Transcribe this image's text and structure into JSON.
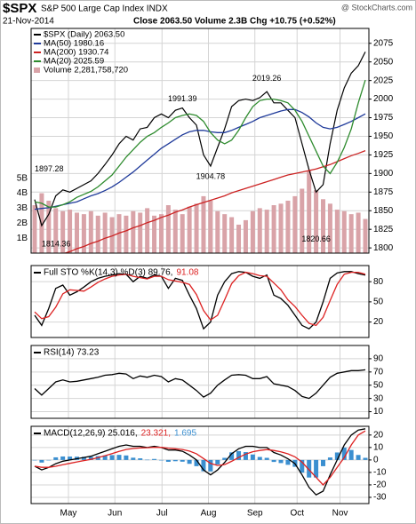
{
  "header": {
    "symbol": "$SPX",
    "name": "S&P 500 Large Cap Index INDX",
    "source": "@ StockCharts.com",
    "date": "21-Nov-2014",
    "quote": "Close 2063.50  Volume 2.3B  Chg +10.75 (+0.52%)"
  },
  "chart_data": [
    {
      "type": "price",
      "legend": "top-left",
      "ylim": [
        1793,
        2095
      ],
      "yticks": [
        1800,
        1825,
        1850,
        1875,
        1900,
        1925,
        1950,
        1975,
        2000,
        2025,
        2050,
        2075
      ],
      "y2lim": [
        0,
        15
      ],
      "y2ticks": [
        {
          "value": 1,
          "label": "1B"
        },
        {
          "value": 2,
          "label": "2B"
        },
        {
          "value": 3,
          "label": "3B"
        },
        {
          "value": 4,
          "label": "4B"
        },
        {
          "value": 5,
          "label": "5B"
        }
      ],
      "series": [
        {
          "name": "$SPX (Daily) 2063.50",
          "color": "#000000",
          "values": [
            1865,
            1830,
            1845,
            1870,
            1878,
            1875,
            1880,
            1885,
            1890,
            1900,
            1912,
            1925,
            1940,
            1950,
            1945,
            1960,
            1962,
            1975,
            1980,
            1975,
            1985,
            1988,
            1975,
            1965,
            1925,
            1910,
            1935,
            1960,
            1990,
            1998,
            2000,
            1998,
            2002,
            2010,
            1995,
            1995,
            1985,
            1975,
            1940,
            1905,
            1875,
            1885,
            1940,
            1985,
            2015,
            2035,
            2045,
            2063.5
          ]
        },
        {
          "name": "MA(50) 1980.16",
          "color": "#1f3a9a",
          "values": [
            1852,
            1853,
            1854,
            1856,
            1858,
            1860,
            1862,
            1866,
            1870,
            1873,
            1877,
            1882,
            1888,
            1895,
            1902,
            1910,
            1918,
            1926,
            1934,
            1940,
            1946,
            1952,
            1956,
            1958,
            1958,
            1956,
            1955,
            1955,
            1958,
            1962,
            1966,
            1970,
            1975,
            1978,
            1981,
            1984,
            1986,
            1986,
            1982,
            1976,
            1968,
            1962,
            1960,
            1962,
            1966,
            1970,
            1975,
            1980.16
          ]
        },
        {
          "name": "MA(200) 1930.74",
          "color": "#cc2222",
          "values": [
            1778,
            1781,
            1785,
            1788,
            1792,
            1795,
            1799,
            1802,
            1806,
            1809,
            1813,
            1816,
            1820,
            1823,
            1827,
            1830,
            1834,
            1837,
            1841,
            1844,
            1848,
            1851,
            1855,
            1858,
            1861,
            1864,
            1867,
            1870,
            1874,
            1877,
            1880,
            1883,
            1886,
            1889,
            1892,
            1895,
            1898,
            1900,
            1902,
            1904,
            1906,
            1909,
            1912,
            1916,
            1920,
            1924,
            1927,
            1930.74
          ]
        },
        {
          "name": "MA(20) 2025.59",
          "color": "#2e8b2e",
          "values": [
            1862,
            1860,
            1855,
            1855,
            1858,
            1862,
            1868,
            1872,
            1876,
            1882,
            1890,
            1898,
            1910,
            1922,
            1932,
            1942,
            1950,
            1955,
            1962,
            1968,
            1975,
            1978,
            1980,
            1978,
            1970,
            1955,
            1945,
            1940,
            1945,
            1958,
            1975,
            1990,
            1998,
            2000,
            2000,
            1998,
            1995,
            1985,
            1970,
            1950,
            1930,
            1910,
            1900,
            1915,
            1935,
            1960,
            1995,
            2025.59
          ]
        },
        {
          "name": "Volume 2,281,758,720",
          "color": "#d9a3a8",
          "type": "bar",
          "axis": "y2",
          "values": [
            3.2,
            4.0,
            3.5,
            3.0,
            2.8,
            2.9,
            2.7,
            2.6,
            2.8,
            2.5,
            2.7,
            2.4,
            2.6,
            2.5,
            2.8,
            2.7,
            3.0,
            2.5,
            2.6,
            3.2,
            2.9,
            2.6,
            3.1,
            3.3,
            3.8,
            3.5,
            2.8,
            2.6,
            2.4,
            1.9,
            2.2,
            2.8,
            3.0,
            2.9,
            3.2,
            3.3,
            3.5,
            3.8,
            4.3,
            5.5,
            4.2,
            3.6,
            3.3,
            2.9,
            2.8,
            2.6,
            2.7,
            2.28
          ]
        }
      ],
      "annotations": [
        {
          "label": "1897.28",
          "x": 0,
          "y": 1897.28
        },
        {
          "label": "1814.36",
          "x": 1,
          "y": 1814.36
        },
        {
          "label": "1991.39",
          "x": 21,
          "y": 1991.39
        },
        {
          "label": "1904.78",
          "x": 25,
          "y": 1904.78
        },
        {
          "label": "2019.26",
          "x": 33,
          "y": 2019.26
        },
        {
          "label": "1820.66",
          "x": 40,
          "y": 1820.66
        }
      ]
    },
    {
      "type": "line",
      "ylim": [
        -3,
        104
      ],
      "yticks": [
        20,
        50,
        80
      ],
      "series": [
        {
          "name": "Full STO %K(14,3) %D(3) 89.76,",
          "color": "#000000",
          "values": [
            30,
            15,
            40,
            70,
            75,
            60,
            65,
            72,
            80,
            85,
            88,
            90,
            92,
            91,
            80,
            88,
            85,
            90,
            88,
            70,
            85,
            82,
            60,
            40,
            10,
            20,
            60,
            80,
            92,
            95,
            94,
            88,
            85,
            90,
            60,
            55,
            45,
            30,
            15,
            10,
            20,
            50,
            85,
            93,
            95,
            95,
            92,
            89.76
          ]
        },
        {
          "name": "91.08",
          "color": "#dd2222",
          "values": [
            35,
            25,
            28,
            42,
            62,
            68,
            67,
            66,
            72,
            79,
            84,
            88,
            90,
            91,
            88,
            86,
            84,
            88,
            88,
            83,
            81,
            79,
            76,
            61,
            37,
            23,
            30,
            53,
            77,
            89,
            94,
            92,
            89,
            88,
            78,
            68,
            53,
            43,
            30,
            18,
            15,
            27,
            52,
            76,
            91,
            94,
            94,
            91.08
          ]
        }
      ]
    },
    {
      "type": "line",
      "ylim": [
        0,
        110
      ],
      "yticks": [
        10,
        30,
        50,
        70,
        90
      ],
      "series": [
        {
          "name": "RSI(14) 73.23",
          "color": "#000000",
          "values": [
            45,
            35,
            45,
            55,
            58,
            55,
            56,
            58,
            60,
            62,
            65,
            66,
            68,
            67,
            60,
            64,
            62,
            65,
            63,
            55,
            60,
            58,
            50,
            42,
            32,
            38,
            50,
            58,
            65,
            66,
            65,
            60,
            60,
            63,
            52,
            50,
            48,
            42,
            33,
            30,
            38,
            50,
            62,
            68,
            70,
            72,
            72,
            73.23
          ]
        }
      ]
    },
    {
      "type": "line",
      "ylim": [
        -35,
        27
      ],
      "yticks": [
        -30,
        -20,
        -10,
        0,
        10,
        20
      ],
      "xlim": [
        0,
        47
      ],
      "xticks": [
        {
          "value": 4.8,
          "label": "May"
        },
        {
          "value": 11.4,
          "label": "Jun"
        },
        {
          "value": 18.1,
          "label": "Jul"
        },
        {
          "value": 24.7,
          "label": "Aug"
        },
        {
          "value": 31.3,
          "label": "Sep"
        },
        {
          "value": 37.3,
          "label": "Oct"
        },
        {
          "value": 43.4,
          "label": "Nov"
        }
      ],
      "series": [
        {
          "name": "1.695",
          "color": "#3b8fd0",
          "type": "bar",
          "values": [
            0,
            -2.1,
            -0.1,
            2.1,
            2.8,
            2.7,
            2.6,
            2.5,
            2.5,
            3.1,
            3.6,
            3.9,
            4.1,
            3.6,
            1.8,
            1.3,
            0.2,
            0.8,
            -0.1,
            -1.5,
            -1,
            -1.4,
            -3.1,
            -5,
            -9.1,
            -9.2,
            -3.6,
            1.7,
            6.1,
            7.1,
            6.3,
            4.4,
            2.4,
            1.7,
            -1.6,
            -2.5,
            -3.9,
            -5.5,
            -10.2,
            -14.1,
            -14.1,
            -5,
            2,
            6,
            10,
            8,
            4,
            1.695
          ]
        },
        {
          "name": "MACD(12,26,9) 25.016,",
          "color": "#000000",
          "values": [
            -5,
            -8,
            -6,
            -3,
            -1,
            0,
            1,
            2,
            3,
            5,
            7,
            9,
            11,
            12,
            11,
            11,
            10,
            11,
            10,
            8,
            8,
            7,
            4,
            0,
            -8,
            -12,
            -8,
            -2,
            5,
            9,
            11,
            11,
            10,
            10,
            6,
            4,
            1,
            -3,
            -12,
            -22,
            -28,
            -25,
            -12,
            0,
            12,
            20,
            24,
            25.016
          ]
        },
        {
          "name": "23.321,",
          "color": "#dd2222",
          "values": [
            -5,
            -5.9,
            -5.9,
            -5.1,
            -3.8,
            -2.7,
            -1.6,
            -0.5,
            0.5,
            1.9,
            3.4,
            5.1,
            6.9,
            8.4,
            9.2,
            9.7,
            9.8,
            10.2,
            10.1,
            9.5,
            9,
            8.4,
            7.1,
            5,
            1.1,
            -2.8,
            -4.4,
            -3.7,
            -1.1,
            2,
            4.7,
            6.6,
            7.6,
            8.3,
            7.6,
            6.5,
            4.9,
            2.5,
            -1.8,
            -7.9,
            -13.9,
            -20,
            -14,
            -6,
            2,
            12,
            20,
            23.321
          ]
        }
      ]
    }
  ]
}
